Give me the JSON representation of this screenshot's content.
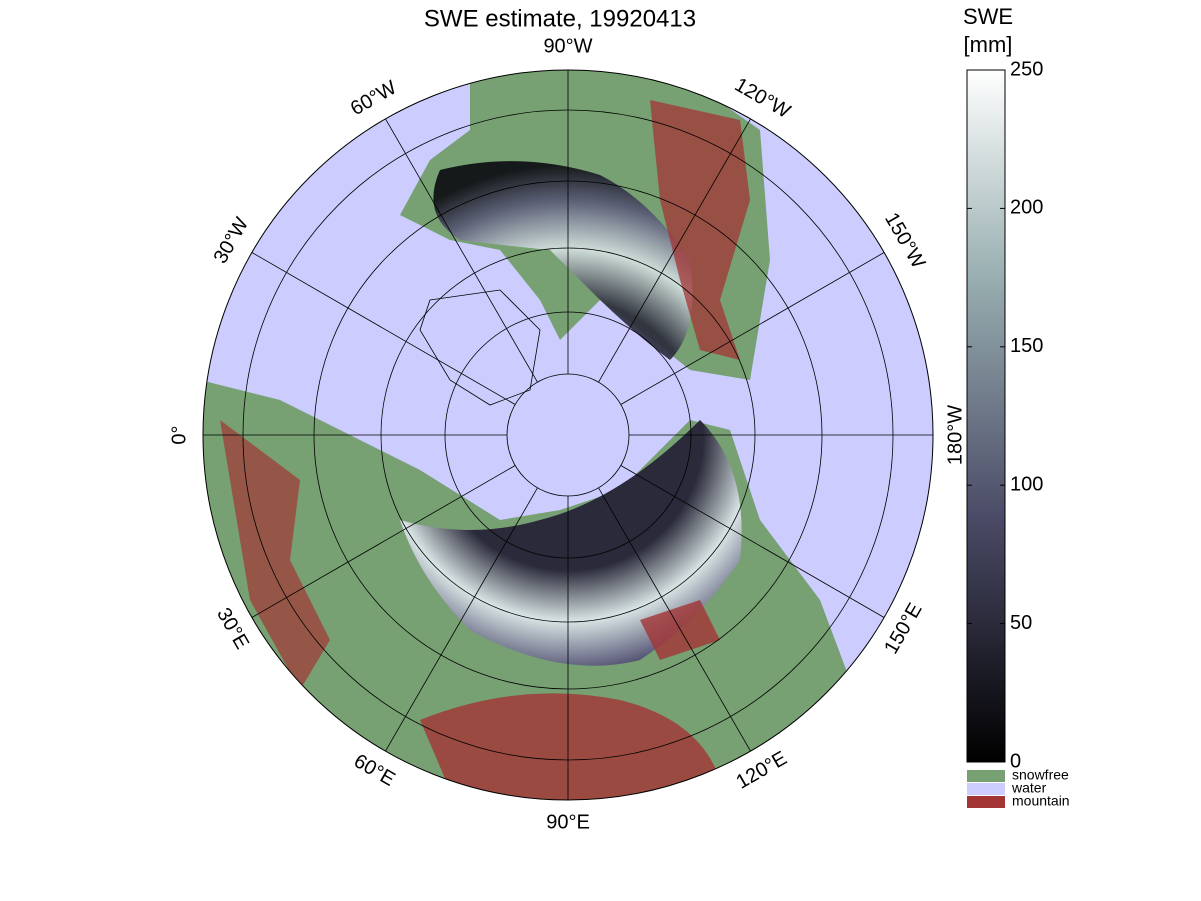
{
  "title": "SWE estimate, 19920413",
  "longitude_labels": [
    {
      "lon": -90,
      "label": "90°W"
    },
    {
      "lon": -60,
      "label": "60°W"
    },
    {
      "lon": -120,
      "label": "120°W"
    },
    {
      "lon": -30,
      "label": "30°W"
    },
    {
      "lon": -150,
      "label": "150°W"
    },
    {
      "lon": 0,
      "label": "0°"
    },
    {
      "lon": -180,
      "label": "180°W"
    },
    {
      "lon": 30,
      "label": "30°E"
    },
    {
      "lon": 150,
      "label": "150°E"
    },
    {
      "lon": 60,
      "label": "60°E"
    },
    {
      "lon": 120,
      "label": "120°E"
    },
    {
      "lon": 90,
      "label": "90°E"
    }
  ],
  "colorbar": {
    "title": [
      "SWE",
      "[mm]"
    ],
    "lim": [
      0,
      250
    ],
    "ticks": [
      0,
      50,
      100,
      150,
      200,
      250
    ]
  },
  "legend": [
    {
      "label": "snowfree",
      "color": "#77a073"
    },
    {
      "label": "water",
      "color": "#ccccff"
    },
    {
      "label": "mountain",
      "color": "#a33434"
    }
  ]
}
